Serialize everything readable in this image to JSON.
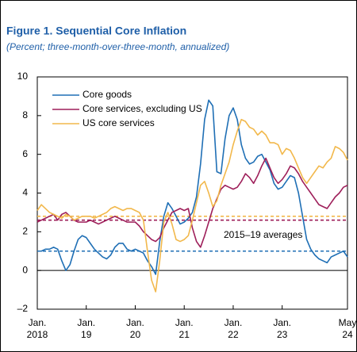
{
  "chart_data": {
    "type": "line",
    "title": "Figure 1.  Sequential Core Inflation",
    "subtitle": "(Percent; three-month-over-three-month, annualized)",
    "annotation": "2015–19 averages",
    "x": [
      "2018-01",
      "2018-02",
      "2018-03",
      "2018-04",
      "2018-05",
      "2018-06",
      "2018-07",
      "2018-08",
      "2018-09",
      "2018-10",
      "2018-11",
      "2018-12",
      "2019-01",
      "2019-02",
      "2019-03",
      "2019-04",
      "2019-05",
      "2019-06",
      "2019-07",
      "2019-08",
      "2019-09",
      "2019-10",
      "2019-11",
      "2019-12",
      "2020-01",
      "2020-02",
      "2020-03",
      "2020-04",
      "2020-05",
      "2020-06",
      "2020-07",
      "2020-08",
      "2020-09",
      "2020-10",
      "2020-11",
      "2020-12",
      "2021-01",
      "2021-02",
      "2021-03",
      "2021-04",
      "2021-05",
      "2021-06",
      "2021-07",
      "2021-08",
      "2021-09",
      "2021-10",
      "2021-11",
      "2021-12",
      "2022-01",
      "2022-02",
      "2022-03",
      "2022-04",
      "2022-05",
      "2022-06",
      "2022-07",
      "2022-08",
      "2022-09",
      "2022-10",
      "2022-11",
      "2022-12",
      "2023-01",
      "2023-02",
      "2023-03",
      "2023-04",
      "2023-05",
      "2023-06",
      "2023-07",
      "2023-08",
      "2023-09",
      "2023-10",
      "2023-11",
      "2023-12",
      "2024-01",
      "2024-02",
      "2024-03",
      "2024-04",
      "2024-05"
    ],
    "xticks": [
      {
        "value": "2018-01",
        "label": [
          "Jan.",
          "2018"
        ]
      },
      {
        "value": "2019-01",
        "label": [
          "Jan.",
          "19"
        ]
      },
      {
        "value": "2020-01",
        "label": [
          "Jan.",
          "20"
        ]
      },
      {
        "value": "2021-01",
        "label": [
          "Jan.",
          "21"
        ]
      },
      {
        "value": "2022-01",
        "label": [
          "Jan.",
          "22"
        ]
      },
      {
        "value": "2023-01",
        "label": [
          "Jan.",
          "23"
        ]
      },
      {
        "value": "2024-05",
        "label": [
          "May",
          "24"
        ]
      }
    ],
    "ylim": [
      -2,
      10
    ],
    "yticks": [
      {
        "value": -2,
        "label": "–2"
      },
      0,
      2,
      4,
      6,
      8,
      10
    ],
    "legend": "upper left",
    "series": [
      {
        "name": "Core goods",
        "color": "#1f6fb5",
        "average": 1.0,
        "values": [
          1.0,
          1.0,
          1.1,
          1.1,
          1.2,
          1.1,
          0.5,
          0.0,
          0.3,
          1.0,
          1.6,
          1.8,
          1.7,
          1.4,
          1.1,
          0.9,
          0.7,
          0.6,
          0.8,
          1.2,
          1.4,
          1.4,
          1.1,
          1.0,
          1.1,
          1.0,
          0.9,
          0.5,
          0.2,
          -0.2,
          1.5,
          2.8,
          3.5,
          3.2,
          2.8,
          2.4,
          2.5,
          2.7,
          3.0,
          3.8,
          5.5,
          7.8,
          8.8,
          8.5,
          5.1,
          5.0,
          6.8,
          8.0,
          8.4,
          7.8,
          6.5,
          5.8,
          5.5,
          5.6,
          5.9,
          6.0,
          5.6,
          5.2,
          4.5,
          4.2,
          4.3,
          4.6,
          4.9,
          4.8,
          4.0,
          2.8,
          1.6,
          1.1,
          0.8,
          0.6,
          0.5,
          0.4,
          0.7,
          0.8,
          0.9,
          1.0,
          0.7
        ]
      },
      {
        "name": "Core services, excluding US",
        "color": "#9e1f5a",
        "average": 2.6,
        "values": [
          2.5,
          2.6,
          2.7,
          2.8,
          2.9,
          2.6,
          2.9,
          3.0,
          2.8,
          2.6,
          2.5,
          2.5,
          2.5,
          2.6,
          2.5,
          2.4,
          2.5,
          2.6,
          2.7,
          2.8,
          2.7,
          2.6,
          2.5,
          2.5,
          2.5,
          2.3,
          2.0,
          1.8,
          1.6,
          1.5,
          1.7,
          2.2,
          2.6,
          3.0,
          3.1,
          3.2,
          3.1,
          3.2,
          2.2,
          1.5,
          1.2,
          1.8,
          2.5,
          3.2,
          3.7,
          4.2,
          4.4,
          4.3,
          4.2,
          4.3,
          4.6,
          5.0,
          4.8,
          4.5,
          4.9,
          5.4,
          5.8,
          5.3,
          4.8,
          4.5,
          4.7,
          5.0,
          5.4,
          5.3,
          5.0,
          4.6,
          4.3,
          4.0,
          3.7,
          3.4,
          3.3,
          3.2,
          3.5,
          3.8,
          4.0,
          4.3,
          4.4
        ]
      },
      {
        "name": "US core services",
        "color": "#f2b84b",
        "average": 2.8,
        "values": [
          3.1,
          3.4,
          3.2,
          3.0,
          2.9,
          2.8,
          2.7,
          2.9,
          2.8,
          2.6,
          2.7,
          2.8,
          2.8,
          2.8,
          2.7,
          2.8,
          2.9,
          3.0,
          3.2,
          3.3,
          3.2,
          3.1,
          3.2,
          3.2,
          3.1,
          3.0,
          2.6,
          1.0,
          -0.5,
          -1.1,
          0.5,
          2.5,
          3.0,
          2.4,
          1.6,
          1.5,
          1.6,
          1.8,
          2.6,
          3.5,
          4.4,
          4.6,
          4.0,
          3.3,
          3.6,
          4.4,
          5.0,
          5.6,
          6.5,
          7.2,
          7.8,
          7.7,
          7.4,
          7.3,
          7.0,
          7.2,
          7.0,
          6.6,
          6.6,
          6.5,
          6.0,
          6.3,
          6.2,
          5.8,
          5.3,
          4.8,
          4.5,
          4.8,
          5.1,
          5.4,
          5.3,
          5.6,
          5.8,
          6.4,
          6.3,
          6.1,
          5.7
        ]
      }
    ]
  }
}
